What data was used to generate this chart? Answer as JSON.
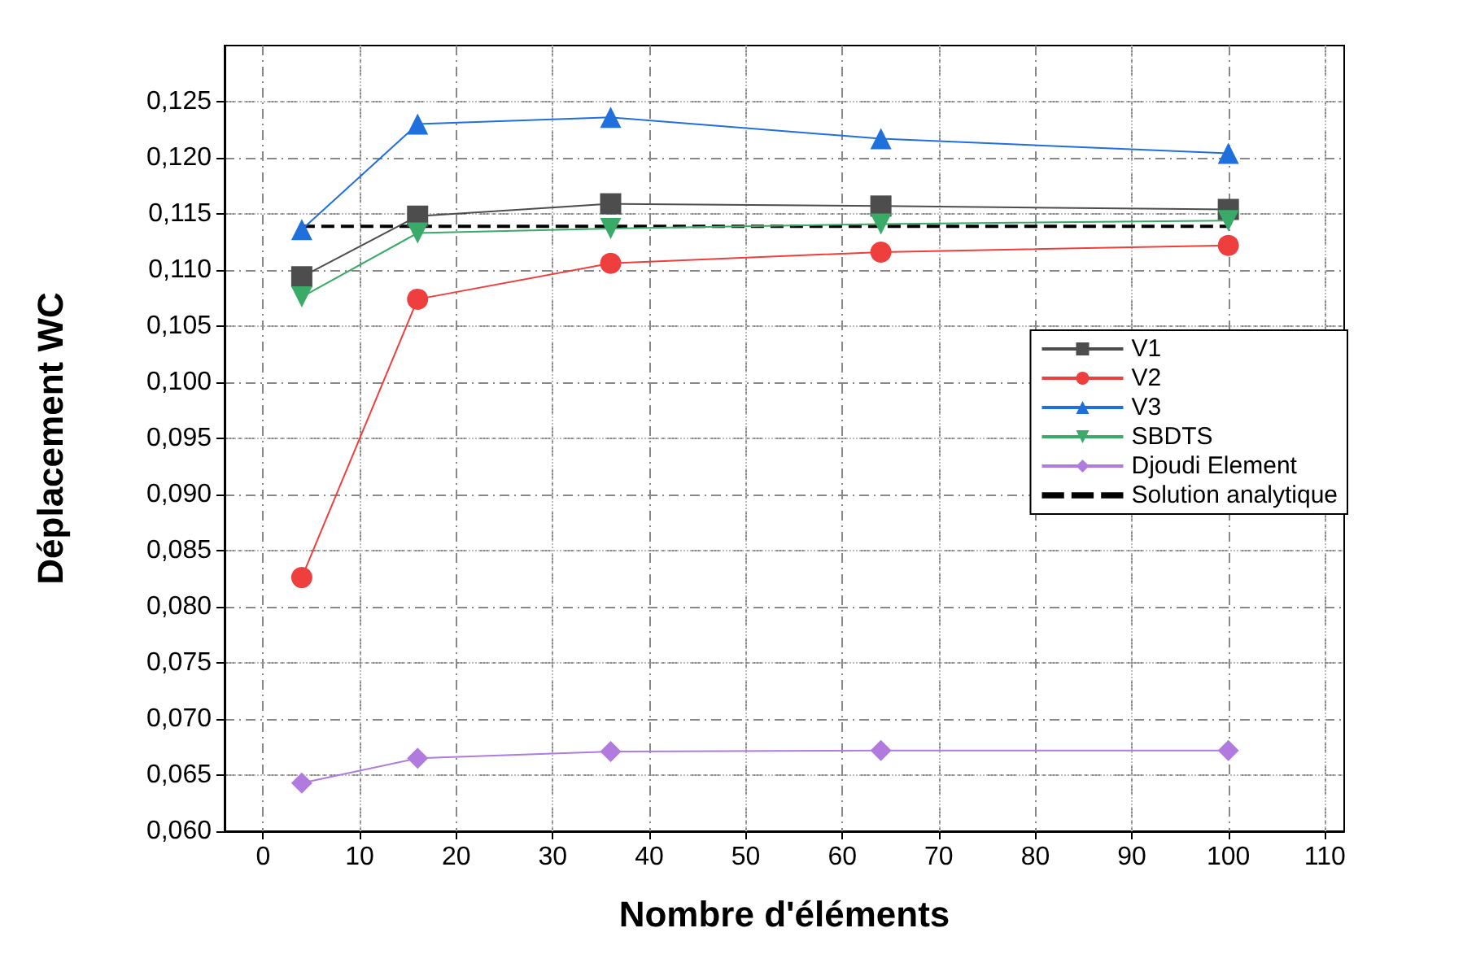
{
  "chart_data": {
    "type": "line",
    "xlabel": "Nombre d'éléments",
    "ylabel": "Déplacement WC",
    "x": [
      4,
      16,
      36,
      64,
      100
    ],
    "series": [
      {
        "name": "V1",
        "color": "#4d4d4d",
        "marker": "square",
        "values": [
          0.1094,
          0.1148,
          0.1159,
          0.1157,
          0.1154
        ]
      },
      {
        "name": "V2",
        "color": "#ee3e3e",
        "marker": "circle",
        "values": [
          0.0826,
          0.1074,
          0.1106,
          0.1116,
          0.1122
        ]
      },
      {
        "name": "V3",
        "color": "#1f6fdc",
        "marker": "triangle",
        "values": [
          0.1136,
          0.123,
          0.1236,
          0.1217,
          0.1204
        ]
      },
      {
        "name": "SBDTS",
        "color": "#3aaa68",
        "marker": "triangle-down",
        "values": [
          0.1076,
          0.1133,
          0.1137,
          0.1141,
          0.1144
        ]
      },
      {
        "name": "Djoudi Element",
        "color": "#b07ade",
        "marker": "diamond",
        "values": [
          0.0643,
          0.0665,
          0.0671,
          0.0672,
          0.0672
        ]
      },
      {
        "name": "Solution analytique",
        "color": "#000000",
        "marker": "none",
        "line_style": "dashed",
        "x": [
          4,
          100
        ],
        "values": [
          0.1139,
          0.1139
        ]
      }
    ],
    "xlim": [
      -4,
      112
    ],
    "xticks": [
      0,
      10,
      20,
      30,
      40,
      50,
      60,
      70,
      80,
      90,
      100,
      110
    ],
    "ylim": [
      0.06,
      0.13
    ],
    "yticks": [
      {
        "value": 0.06,
        "label": "0,060"
      },
      {
        "value": 0.065,
        "label": "0,065"
      },
      {
        "value": 0.07,
        "label": "0,070"
      },
      {
        "value": 0.075,
        "label": "0,075"
      },
      {
        "value": 0.08,
        "label": "0,080"
      },
      {
        "value": 0.085,
        "label": "0,085"
      },
      {
        "value": 0.09,
        "label": "0,090"
      },
      {
        "value": 0.095,
        "label": "0,095"
      },
      {
        "value": 0.1,
        "label": "0,100"
      },
      {
        "value": 0.105,
        "label": "0,105"
      },
      {
        "value": 0.11,
        "label": "0,110"
      },
      {
        "value": 0.115,
        "label": "0,115"
      },
      {
        "value": 0.12,
        "label": "0,120"
      },
      {
        "value": 0.125,
        "label": "0,125"
      }
    ],
    "grid": true,
    "legend": "right"
  }
}
